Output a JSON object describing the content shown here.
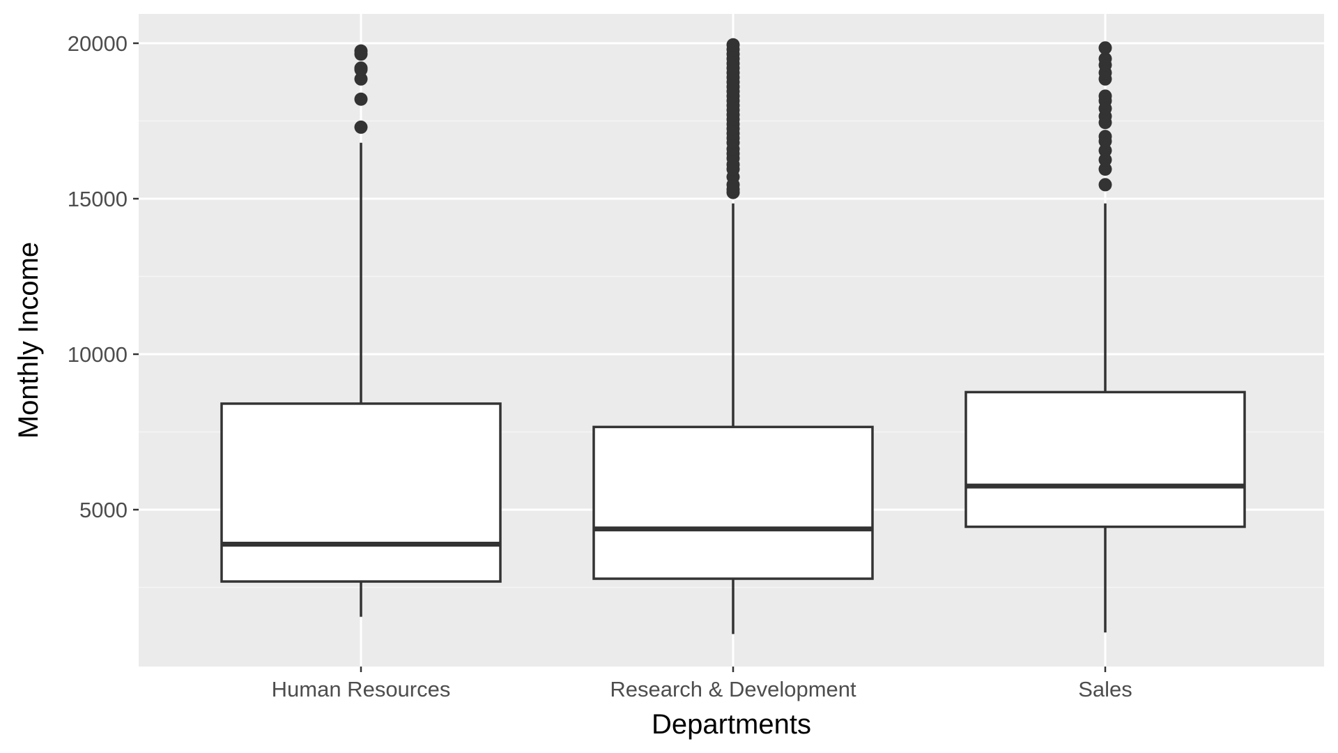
{
  "chart_data": {
    "type": "boxplot",
    "title": "",
    "xlabel": "Departments",
    "ylabel": "Monthly Income",
    "categories": [
      "Human Resources",
      "Research & Development",
      "Sales"
    ],
    "boxes": [
      {
        "category": "Human Resources",
        "whisker_low": 1555,
        "q1": 2690,
        "median": 3890,
        "q3": 8410,
        "whisker_high": 16800,
        "outliers": [
          17300,
          18200,
          18850,
          19150,
          19200,
          19650,
          19750
        ]
      },
      {
        "category": "Research & Development",
        "whisker_low": 1000,
        "q1": 2780,
        "median": 4380,
        "q3": 7660,
        "whisker_high": 14850,
        "outliers": [
          15200,
          15300,
          15450,
          15700,
          15950,
          16100,
          16300,
          16450,
          16600,
          16800,
          16950,
          17100,
          17250,
          17400,
          17550,
          17700,
          17850,
          18000,
          18150,
          18300,
          18450,
          18600,
          18750,
          18900,
          19050,
          19200,
          19350,
          19500,
          19650,
          19800,
          19950
        ]
      },
      {
        "category": "Sales",
        "whisker_low": 1050,
        "q1": 4450,
        "median": 5760,
        "q3": 8780,
        "whisker_high": 14850,
        "outliers": [
          15450,
          15950,
          16250,
          16550,
          16850,
          17000,
          17450,
          17650,
          17900,
          18150,
          18300,
          18850,
          19050,
          19300,
          19500,
          19850
        ]
      }
    ],
    "ylim": [
      0,
      20800
    ],
    "yticks": [
      5000,
      10000,
      15000,
      20000
    ],
    "ytick_labels": [
      "5000",
      "10000",
      "15000",
      "20000"
    ],
    "grid": true,
    "colors": {
      "panel_background": "#ebebeb",
      "grid_major": "#ffffff",
      "grid_minor": "#f5f5f5",
      "box_fill": "#ffffff",
      "box_stroke": "#333333",
      "tick_text": "#4d4d4d",
      "tick_mark": "#333333",
      "axis_title": "#000000"
    }
  }
}
